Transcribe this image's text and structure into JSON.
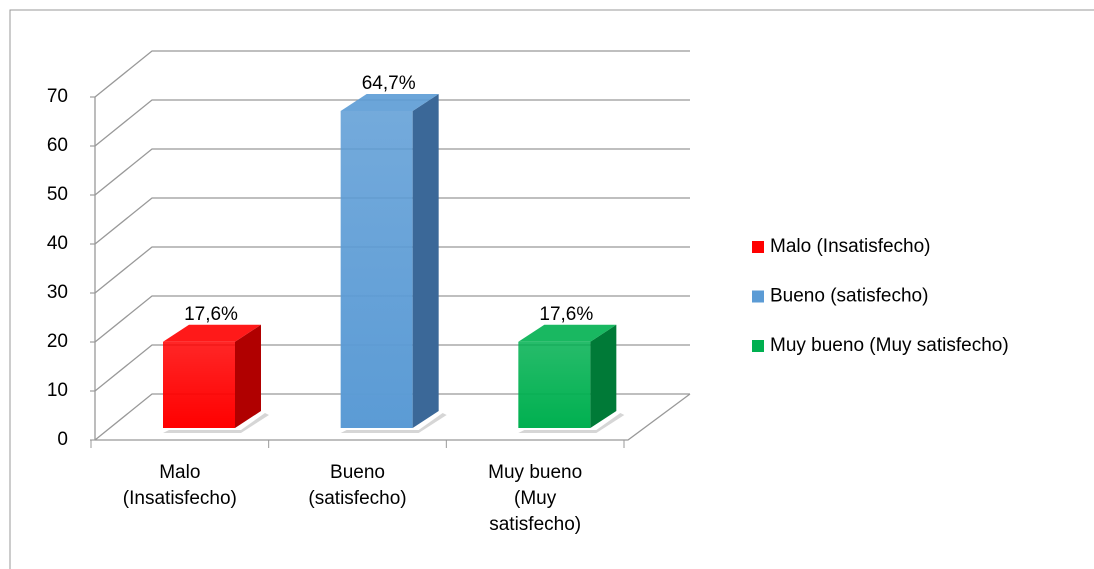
{
  "chart_data": {
    "type": "bar3d",
    "categories": [
      "Malo (Insatisfecho)",
      "Bueno (satisfecho)",
      "Muy bueno (Muy satisfecho)"
    ],
    "values": [
      17.6,
      64.7,
      17.6
    ],
    "value_labels": [
      "17,6%",
      "64,7%",
      "17,6%"
    ],
    "colors": [
      "#ff0000",
      "#5b9bd5",
      "#00b050"
    ],
    "side_colors": [
      "#b00000",
      "#3b6898",
      "#007a37"
    ],
    "ylim": [
      0,
      70
    ],
    "yticks": [
      0,
      10,
      20,
      30,
      40,
      50,
      60,
      70
    ],
    "grid": true,
    "legend": "right"
  }
}
